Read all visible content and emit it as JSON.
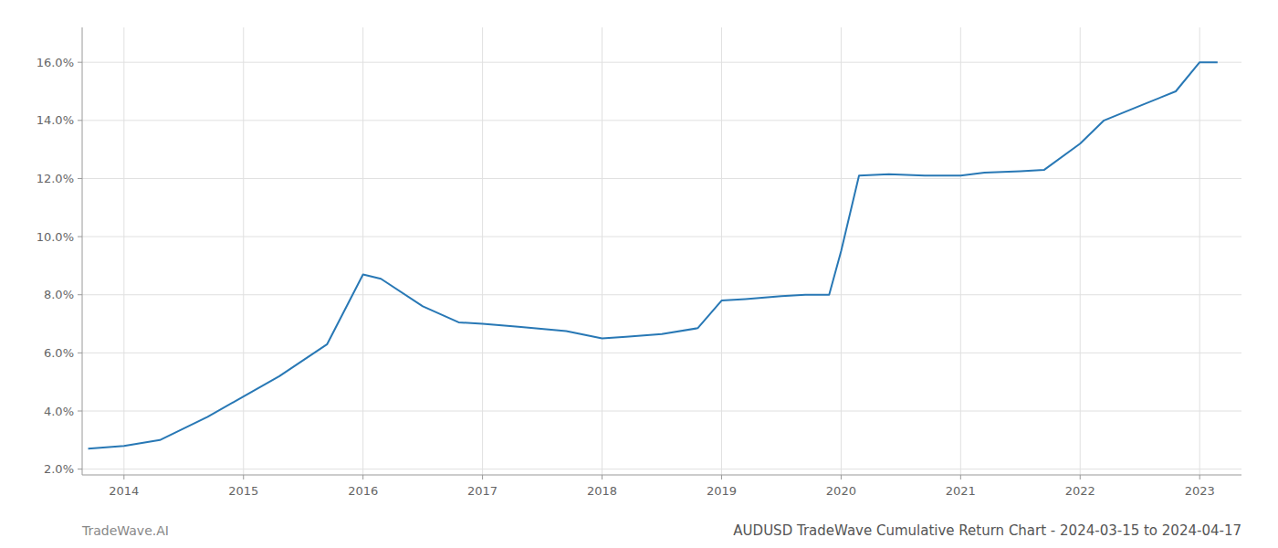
{
  "chart_data": {
    "type": "line",
    "title": "AUDUSD TradeWave Cumulative Return Chart - 2024-03-15 to 2024-04-17",
    "annotations": [
      "TradeWave.AI"
    ],
    "x": [
      2013.7,
      2014.0,
      2014.3,
      2014.7,
      2015.0,
      2015.3,
      2015.7,
      2016.0,
      2016.15,
      2016.5,
      2016.8,
      2017.0,
      2017.3,
      2017.7,
      2018.0,
      2018.2,
      2018.5,
      2018.8,
      2019.0,
      2019.2,
      2019.5,
      2019.7,
      2019.9,
      2020.0,
      2020.15,
      2020.4,
      2020.7,
      2021.0,
      2021.2,
      2021.5,
      2021.7,
      2022.0,
      2022.2,
      2022.5,
      2022.8,
      2023.0,
      2023.15
    ],
    "values": [
      2.7,
      2.8,
      3.0,
      3.8,
      4.5,
      5.2,
      6.3,
      8.7,
      8.55,
      7.6,
      7.05,
      7.0,
      6.9,
      6.75,
      6.5,
      6.55,
      6.65,
      6.85,
      7.8,
      7.85,
      7.95,
      8.0,
      8.0,
      9.5,
      12.1,
      12.15,
      12.1,
      12.1,
      12.2,
      12.25,
      12.3,
      13.2,
      14.0,
      14.5,
      15.0,
      16.0,
      16.0
    ],
    "color": "#2878b5",
    "xlim": [
      2013.65,
      2023.35
    ],
    "ylim": [
      1.8,
      17.2
    ],
    "xticks": [
      2014,
      2015,
      2016,
      2017,
      2018,
      2019,
      2020,
      2021,
      2022,
      2023
    ],
    "yticks": [
      {
        "value": 2.0,
        "label": "2.0%"
      },
      {
        "value": 4.0,
        "label": "4.0%"
      },
      {
        "value": 6.0,
        "label": "6.0%"
      },
      {
        "value": 8.0,
        "label": "8.0%"
      },
      {
        "value": 10.0,
        "label": "10.0%"
      },
      {
        "value": 12.0,
        "label": "12.0%"
      },
      {
        "value": 14.0,
        "label": "14.0%"
      },
      {
        "value": 16.0,
        "label": "16.0%"
      }
    ],
    "grid": true
  }
}
